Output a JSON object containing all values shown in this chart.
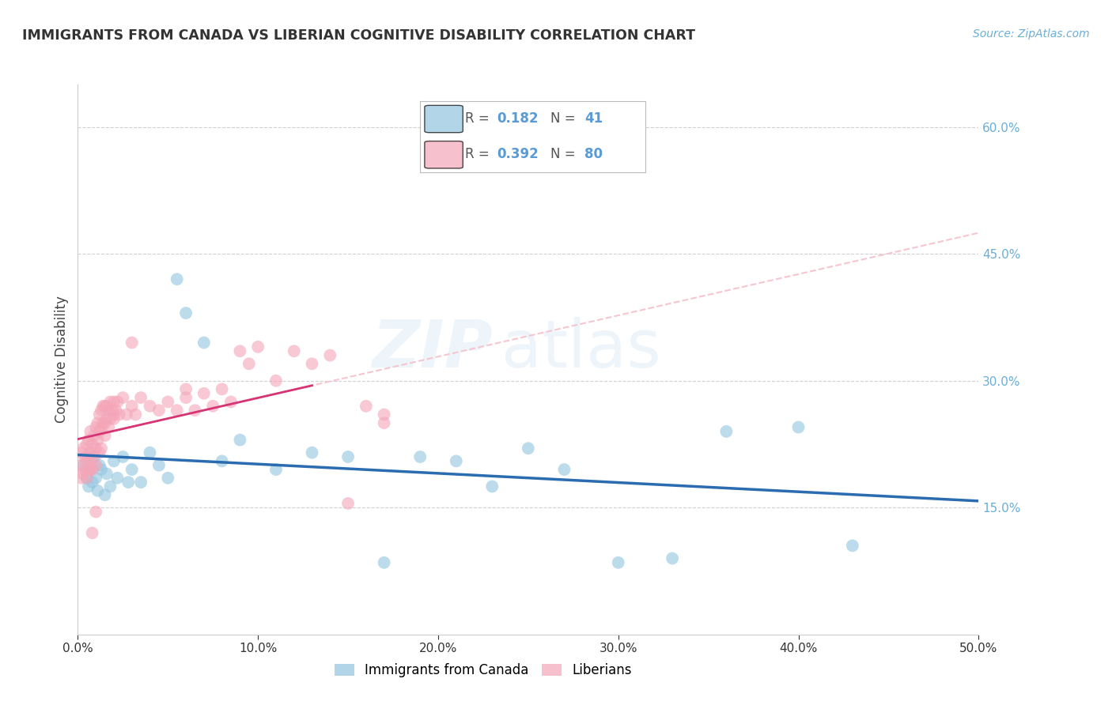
{
  "title": "IMMIGRANTS FROM CANADA VS LIBERIAN COGNITIVE DISABILITY CORRELATION CHART",
  "source": "Source: ZipAtlas.com",
  "ylabel_label": "Cognitive Disability",
  "xlim": [
    0.0,
    0.5
  ],
  "ylim": [
    0.0,
    0.65
  ],
  "xticks": [
    0.0,
    0.1,
    0.2,
    0.3,
    0.4,
    0.5
  ],
  "yticks": [
    0.15,
    0.3,
    0.45,
    0.6
  ],
  "blue_R": 0.182,
  "blue_N": 41,
  "pink_R": 0.392,
  "pink_N": 80,
  "blue_color": "#92c5de",
  "pink_color": "#f4a6b8",
  "blue_line_color": "#2b6cb0",
  "pink_line_color": "#d63475",
  "blue_dashed_color": "#c5ddf0",
  "pink_dashed_color": "#f5c6d0",
  "watermark_zip": "ZIP",
  "watermark_atlas": "atlas",
  "legend_label_blue": "Immigrants from Canada",
  "legend_label_pink": "Liberians",
  "grid_color": "#cccccc",
  "background_color": "#ffffff",
  "blue_x": [
    0.003,
    0.005,
    0.006,
    0.007,
    0.008,
    0.009,
    0.01,
    0.011,
    0.012,
    0.013,
    0.015,
    0.016,
    0.018,
    0.02,
    0.022,
    0.025,
    0.028,
    0.03,
    0.035,
    0.04,
    0.045,
    0.05,
    0.055,
    0.06,
    0.07,
    0.08,
    0.09,
    0.11,
    0.13,
    0.15,
    0.17,
    0.19,
    0.21,
    0.23,
    0.25,
    0.27,
    0.3,
    0.33,
    0.36,
    0.4,
    0.43
  ],
  "blue_y": [
    0.2,
    0.185,
    0.175,
    0.195,
    0.18,
    0.21,
    0.185,
    0.17,
    0.2,
    0.195,
    0.165,
    0.19,
    0.175,
    0.205,
    0.185,
    0.21,
    0.18,
    0.195,
    0.18,
    0.215,
    0.2,
    0.185,
    0.42,
    0.38,
    0.345,
    0.205,
    0.23,
    0.195,
    0.215,
    0.21,
    0.085,
    0.21,
    0.205,
    0.175,
    0.22,
    0.195,
    0.085,
    0.09,
    0.24,
    0.245,
    0.105
  ],
  "pink_x": [
    0.001,
    0.002,
    0.002,
    0.003,
    0.003,
    0.004,
    0.004,
    0.005,
    0.005,
    0.005,
    0.006,
    0.006,
    0.006,
    0.007,
    0.007,
    0.007,
    0.008,
    0.008,
    0.008,
    0.009,
    0.009,
    0.01,
    0.01,
    0.01,
    0.011,
    0.011,
    0.012,
    0.012,
    0.012,
    0.013,
    0.013,
    0.013,
    0.014,
    0.014,
    0.015,
    0.015,
    0.015,
    0.016,
    0.016,
    0.017,
    0.017,
    0.018,
    0.018,
    0.019,
    0.02,
    0.02,
    0.021,
    0.022,
    0.023,
    0.025,
    0.027,
    0.03,
    0.032,
    0.035,
    0.04,
    0.045,
    0.05,
    0.055,
    0.06,
    0.065,
    0.07,
    0.075,
    0.08,
    0.085,
    0.09,
    0.095,
    0.1,
    0.11,
    0.12,
    0.13,
    0.14,
    0.15,
    0.16,
    0.17,
    0.17,
    0.06,
    0.03,
    0.02,
    0.01,
    0.008
  ],
  "pink_y": [
    0.2,
    0.215,
    0.185,
    0.22,
    0.19,
    0.21,
    0.195,
    0.225,
    0.205,
    0.185,
    0.23,
    0.21,
    0.195,
    0.24,
    0.215,
    0.195,
    0.225,
    0.205,
    0.195,
    0.235,
    0.215,
    0.245,
    0.22,
    0.2,
    0.25,
    0.23,
    0.26,
    0.24,
    0.215,
    0.265,
    0.245,
    0.22,
    0.27,
    0.25,
    0.27,
    0.25,
    0.235,
    0.27,
    0.255,
    0.265,
    0.245,
    0.275,
    0.255,
    0.265,
    0.275,
    0.255,
    0.265,
    0.275,
    0.26,
    0.28,
    0.26,
    0.27,
    0.26,
    0.28,
    0.27,
    0.265,
    0.275,
    0.265,
    0.28,
    0.265,
    0.285,
    0.27,
    0.29,
    0.275,
    0.335,
    0.32,
    0.34,
    0.3,
    0.335,
    0.32,
    0.33,
    0.155,
    0.27,
    0.25,
    0.26,
    0.29,
    0.345,
    0.26,
    0.145,
    0.12
  ]
}
